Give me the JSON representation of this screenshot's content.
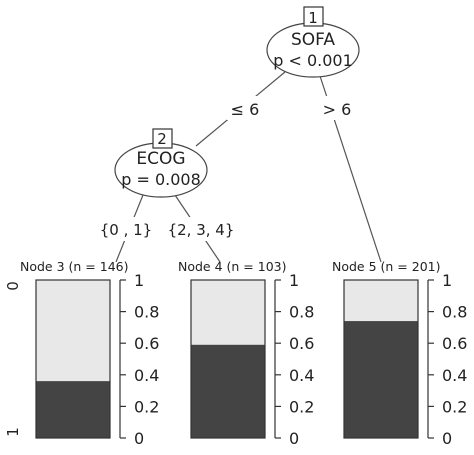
{
  "colors": {
    "light": "#e8e8e8",
    "dark": "#444444",
    "line": "#555555"
  },
  "inner_nodes": [
    {
      "id": "1",
      "variable": "SOFA",
      "pvalue": "p < 0.001"
    },
    {
      "id": "2",
      "variable": "ECOG",
      "pvalue": "p = 0.008"
    }
  ],
  "edges": [
    {
      "label": "≤ 6"
    },
    {
      "label": "> 6"
    },
    {
      "label": "{0 , 1}"
    },
    {
      "label": "{2, 3, 4}"
    }
  ],
  "terminal_nodes": [
    {
      "label": "Node 3 (n = 146)",
      "proportion_light": 0.64,
      "proportion_dark": 0.36
    },
    {
      "label": "Node 4 (n = 103)",
      "proportion_light": 0.41,
      "proportion_dark": 0.59
    },
    {
      "label": "Node 5 (n = 201)",
      "proportion_light": 0.26,
      "proportion_dark": 0.74
    }
  ],
  "axis": {
    "ticks": [
      "0",
      "0.2",
      "0.4",
      "0.6",
      "0.8",
      "1"
    ],
    "category_top": "0",
    "category_bottom": "1"
  }
}
